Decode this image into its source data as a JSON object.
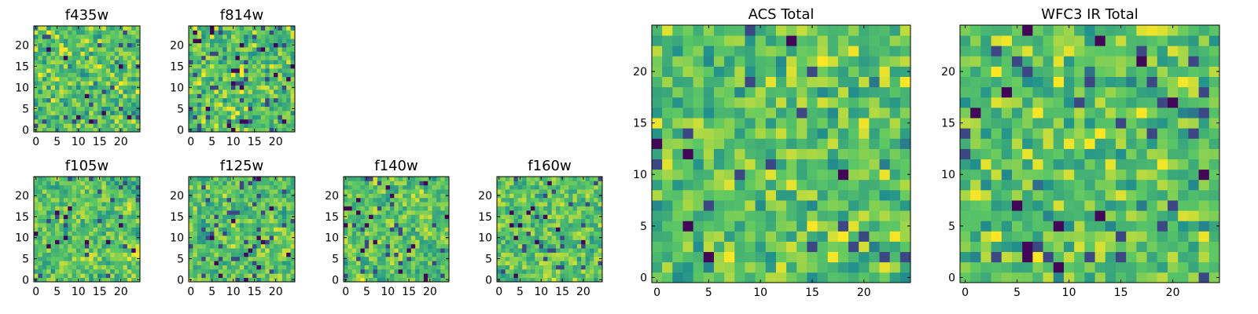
{
  "figure": {
    "colormap": [
      "#440154",
      "#3b528b",
      "#21908d",
      "#5dc863",
      "#fde725"
    ],
    "frame_color": "#000000"
  },
  "chart_data": [
    {
      "type": "heatmap",
      "title": "f435w",
      "grid_size": 25,
      "xlim": [
        -0.5,
        24.5
      ],
      "ylim": [
        -0.5,
        24.5
      ],
      "xticks": [
        "0",
        "5",
        "10",
        "15",
        "20"
      ],
      "yticks": [
        "0",
        "5",
        "10",
        "15",
        "20"
      ],
      "seed": 11,
      "smooth": 0,
      "dark_fraction": 0.02
    },
    {
      "type": "heatmap",
      "title": "f814w",
      "grid_size": 25,
      "xlim": [
        -0.5,
        24.5
      ],
      "ylim": [
        -0.5,
        24.5
      ],
      "xticks": [
        "0",
        "5",
        "10",
        "15",
        "20"
      ],
      "yticks": [
        "0",
        "5",
        "10",
        "15",
        "20"
      ],
      "seed": 23,
      "smooth": 0,
      "dark_fraction": 0.025
    },
    {
      "type": "heatmap",
      "title": "f105w",
      "grid_size": 25,
      "xlim": [
        -0.5,
        24.5
      ],
      "ylim": [
        -0.5,
        24.5
      ],
      "xticks": [
        "0",
        "5",
        "10",
        "15",
        "20"
      ],
      "yticks": [
        "0",
        "5",
        "10",
        "15",
        "20"
      ],
      "seed": 37,
      "smooth": 1,
      "dark_fraction": 0.02
    },
    {
      "type": "heatmap",
      "title": "f125w",
      "grid_size": 25,
      "xlim": [
        -0.5,
        24.5
      ],
      "ylim": [
        -0.5,
        24.5
      ],
      "xticks": [
        "0",
        "5",
        "10",
        "15",
        "20"
      ],
      "yticks": [
        "0",
        "5",
        "10",
        "15",
        "20"
      ],
      "seed": 41,
      "smooth": 1,
      "dark_fraction": 0.02
    },
    {
      "type": "heatmap",
      "title": "f140w",
      "grid_size": 25,
      "xlim": [
        -0.5,
        24.5
      ],
      "ylim": [
        -0.5,
        24.5
      ],
      "xticks": [
        "0",
        "5",
        "10",
        "15",
        "20"
      ],
      "yticks": [
        "0",
        "5",
        "10",
        "15",
        "20"
      ],
      "seed": 53,
      "smooth": 1,
      "dark_fraction": 0.02
    },
    {
      "type": "heatmap",
      "title": "f160w",
      "grid_size": 25,
      "xlim": [
        -0.5,
        24.5
      ],
      "ylim": [
        -0.5,
        24.5
      ],
      "xticks": [
        "0",
        "5",
        "10",
        "15",
        "20"
      ],
      "yticks": [
        "0",
        "5",
        "10",
        "15",
        "20"
      ],
      "seed": 67,
      "smooth": 1,
      "dark_fraction": 0.02
    },
    {
      "type": "heatmap",
      "title": "ACS Total",
      "grid_size": 25,
      "xlim": [
        -0.5,
        24.5
      ],
      "ylim": [
        -0.5,
        24.5
      ],
      "xticks": [
        "0",
        "5",
        "10",
        "15",
        "20"
      ],
      "yticks": [
        "0",
        "5",
        "10",
        "15",
        "20"
      ],
      "seed": 79,
      "smooth": 0,
      "dark_fraction": 0.015
    },
    {
      "type": "heatmap",
      "title": "WFC3 IR Total",
      "grid_size": 25,
      "xlim": [
        -0.5,
        24.5
      ],
      "ylim": [
        -0.5,
        24.5
      ],
      "xticks": [
        "0",
        "5",
        "10",
        "15",
        "20"
      ],
      "yticks": [
        "0",
        "5",
        "10",
        "15",
        "20"
      ],
      "seed": 97,
      "smooth": 0,
      "dark_fraction": 0.02
    }
  ]
}
